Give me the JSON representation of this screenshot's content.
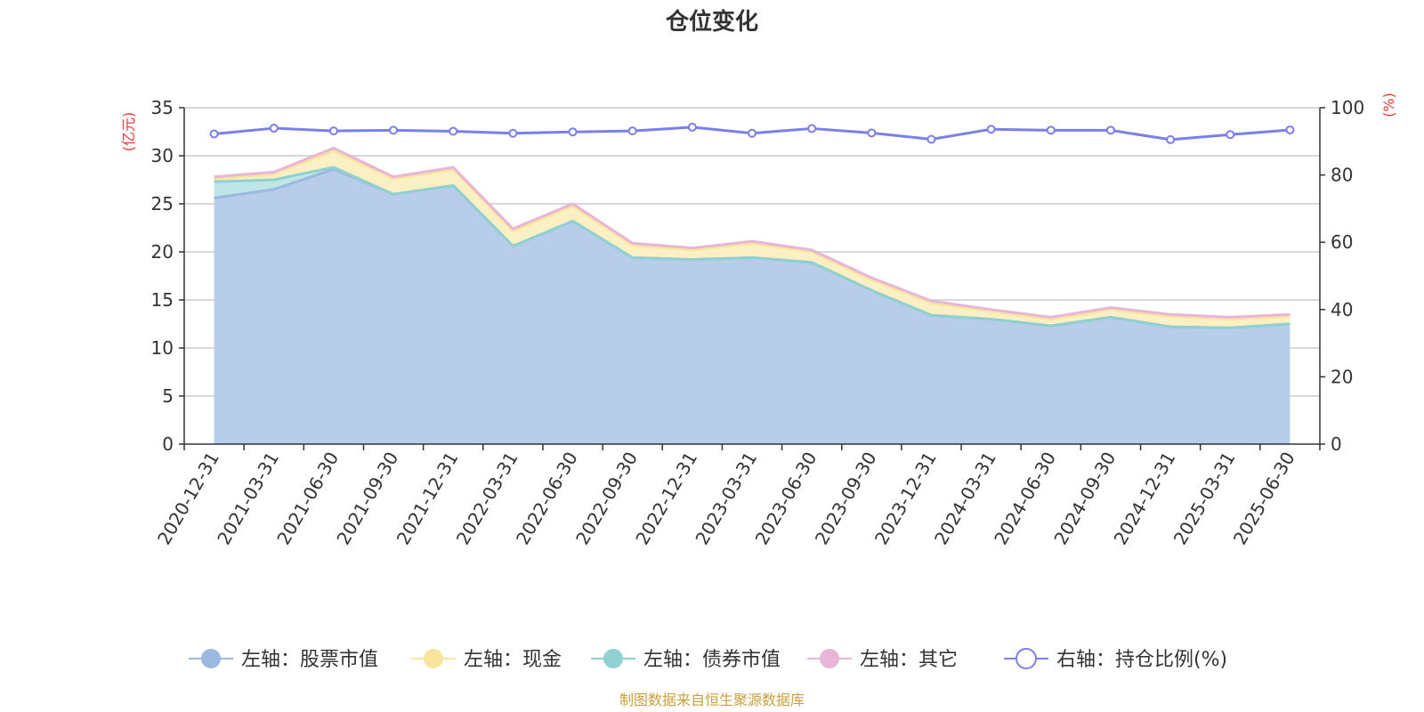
{
  "chart_data": {
    "type": "area",
    "title": "仓位变化",
    "source": "制图数据来自恒生聚源数据库",
    "left_axis": {
      "unit_label": "(亿元)",
      "min": 0,
      "max": 35,
      "ticks": [
        0,
        5,
        10,
        15,
        20,
        25,
        30,
        35
      ]
    },
    "right_axis": {
      "unit_label": "(%)",
      "min": 0,
      "max": 100,
      "ticks": [
        0,
        20,
        40,
        60,
        80,
        100
      ]
    },
    "categories": [
      "2020-12-31",
      "2021-03-31",
      "2021-06-30",
      "2021-09-30",
      "2021-12-31",
      "2022-03-31",
      "2022-06-30",
      "2022-09-30",
      "2022-12-31",
      "2023-03-31",
      "2023-06-30",
      "2023-09-30",
      "2023-12-31",
      "2024-03-31",
      "2024-06-30",
      "2024-09-30",
      "2024-12-31",
      "2025-03-31",
      "2025-06-30"
    ],
    "series": [
      {
        "name": "左轴：股票市值",
        "axis": "left",
        "stack": true,
        "color": "#9bb8e0",
        "fill": "#b8cdea",
        "values": [
          25.6,
          26.5,
          28.6,
          26.0,
          26.9,
          20.6,
          23.2,
          19.4,
          19.2,
          19.4,
          18.9,
          16.0,
          13.4,
          13.0,
          12.3,
          13.2,
          12.2,
          12.1,
          12.5
        ]
      },
      {
        "name": "左轴：债券市值",
        "axis": "left",
        "stack": true,
        "color": "#8fd0d0",
        "fill": "#bfe6e6",
        "values": [
          1.7,
          1.0,
          0.2,
          0.0,
          0.0,
          0.0,
          0.0,
          0.0,
          0.0,
          0.0,
          0.0,
          0.0,
          0.0,
          0.0,
          0.0,
          0.0,
          0.0,
          0.0,
          0.0
        ]
      },
      {
        "name": "左轴：现金",
        "axis": "left",
        "stack": true,
        "color": "#f8e49c",
        "fill": "#fbefc4",
        "values": [
          0.3,
          0.6,
          1.7,
          1.6,
          1.7,
          1.6,
          1.6,
          1.3,
          1.0,
          1.5,
          1.1,
          1.1,
          1.3,
          0.8,
          0.7,
          0.8,
          1.1,
          0.9,
          0.8
        ]
      },
      {
        "name": "左轴：其它",
        "axis": "left",
        "stack": true,
        "color": "#e8b4d8",
        "fill": "#eec4e2",
        "values": [
          0.2,
          0.2,
          0.3,
          0.2,
          0.2,
          0.2,
          0.2,
          0.2,
          0.2,
          0.2,
          0.2,
          0.2,
          0.2,
          0.2,
          0.2,
          0.2,
          0.2,
          0.2,
          0.2
        ]
      },
      {
        "name": "右轴：持仓比例(%)",
        "axis": "right",
        "stack": false,
        "color": "#7b7fe8",
        "values": [
          92.2,
          93.9,
          93.1,
          93.3,
          93.0,
          92.4,
          92.8,
          93.1,
          94.2,
          92.4,
          93.8,
          92.5,
          90.6,
          93.6,
          93.3,
          93.3,
          90.5,
          92.0,
          93.4
        ]
      }
    ],
    "legend": {
      "position": "bottom",
      "items": [
        {
          "label": "左轴：股票市值",
          "color": "#9bb8e0",
          "hollow": false
        },
        {
          "label": "左轴：现金",
          "color": "#f8e49c",
          "hollow": false
        },
        {
          "label": "左轴：债券市值",
          "color": "#8fd0d0",
          "hollow": false
        },
        {
          "label": "左轴：其它",
          "color": "#e8b4d8",
          "hollow": false
        },
        {
          "label": "右轴：持仓比例(%)",
          "color": "#7b7fe8",
          "hollow": true
        }
      ]
    },
    "grid": true
  }
}
